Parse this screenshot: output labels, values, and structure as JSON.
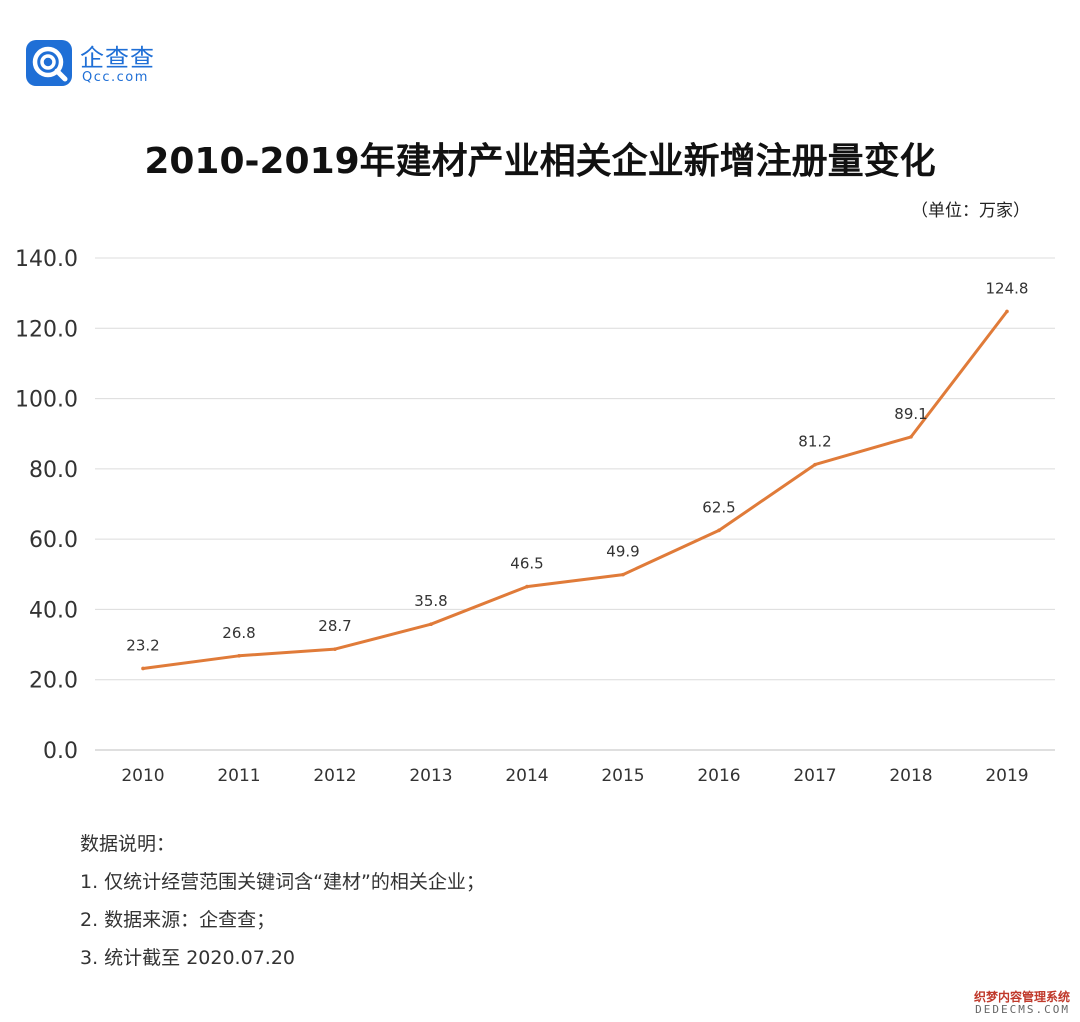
{
  "logo": {
    "name": "企查查",
    "domain": "Qcc.com",
    "icon": "qcc-logo-icon",
    "color": "#1f6fd6"
  },
  "chart_data": {
    "type": "line",
    "title": "2010-2019年建材产业相关企业新增注册量变化",
    "unit_label": "（单位：万家）",
    "categories": [
      "2010",
      "2011",
      "2012",
      "2013",
      "2014",
      "2015",
      "2016",
      "2017",
      "2018",
      "2019"
    ],
    "series": [
      {
        "values": [
          23.2,
          26.8,
          28.7,
          35.8,
          46.5,
          49.9,
          62.5,
          81.2,
          89.1,
          124.8
        ],
        "labels": [
          "23.2",
          "26.8",
          "28.7",
          "35.8",
          "46.5",
          "49.9",
          "62.5",
          "81.2",
          "89.1",
          "124.8"
        ],
        "color": "#e07b39"
      }
    ],
    "yticks": [
      "0.0",
      "20.0",
      "40.0",
      "60.0",
      "80.0",
      "100.0",
      "120.0",
      "140.0"
    ],
    "ylim": [
      0,
      140
    ],
    "grid": true,
    "xlabel": "",
    "ylabel": ""
  },
  "notes": {
    "heading": "数据说明：",
    "items": [
      "1. 仅统计经营范围关键词含“建材”的相关企业；",
      "2. 数据来源：企查查；",
      "3. 统计截至 2020.07.20"
    ]
  },
  "watermark": {
    "cn": "织梦内容管理系统",
    "en": "DEDECMS.COM"
  }
}
